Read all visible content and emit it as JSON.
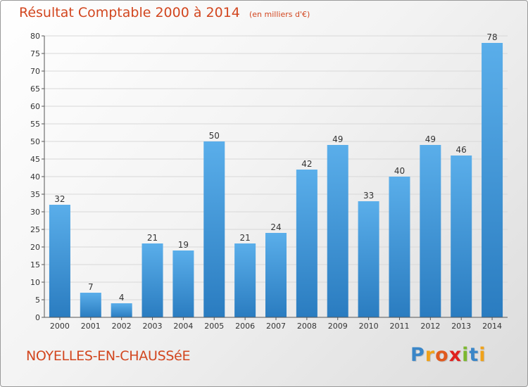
{
  "header": {
    "title": "Résultat Comptable 2000 à 2014",
    "subtitle": "(en milliers d'€)"
  },
  "footer": {
    "commune": "NOYELLES-EN-CHAUSSéE",
    "brand": "Proxiti",
    "brand_letters": [
      {
        "char": "P",
        "color": "#3a86c8"
      },
      {
        "char": "r",
        "color": "#f0a21a"
      },
      {
        "char": "o",
        "color": "#e05a1e"
      },
      {
        "char": "x",
        "color": "#e0201e"
      },
      {
        "char": "i",
        "color": "#7cb82f"
      },
      {
        "char": "t",
        "color": "#3a86c8"
      },
      {
        "char": "i",
        "color": "#f0a21a"
      }
    ]
  },
  "colors": {
    "bar_top": "#5aaeea",
    "bar_bottom": "#2a7cc0",
    "grid": "#d8d8d8",
    "axis": "#555555",
    "title": "#d2461f"
  },
  "chart_data": {
    "type": "bar",
    "title": "Résultat Comptable 2000 à 2014",
    "subtitle": "(en milliers d'€)",
    "xlabel": "",
    "ylabel": "",
    "categories": [
      "2000",
      "2001",
      "2002",
      "2003",
      "2004",
      "2005",
      "2006",
      "2007",
      "2008",
      "2009",
      "2010",
      "2011",
      "2012",
      "2013",
      "2014"
    ],
    "values": [
      32,
      7,
      4,
      21,
      19,
      50,
      21,
      24,
      42,
      49,
      33,
      40,
      49,
      46,
      78
    ],
    "ylim": [
      0,
      80
    ],
    "yticks": [
      0,
      5,
      10,
      15,
      20,
      25,
      30,
      35,
      40,
      45,
      50,
      55,
      60,
      65,
      70,
      75,
      80
    ],
    "grid": true,
    "data_labels": true
  }
}
